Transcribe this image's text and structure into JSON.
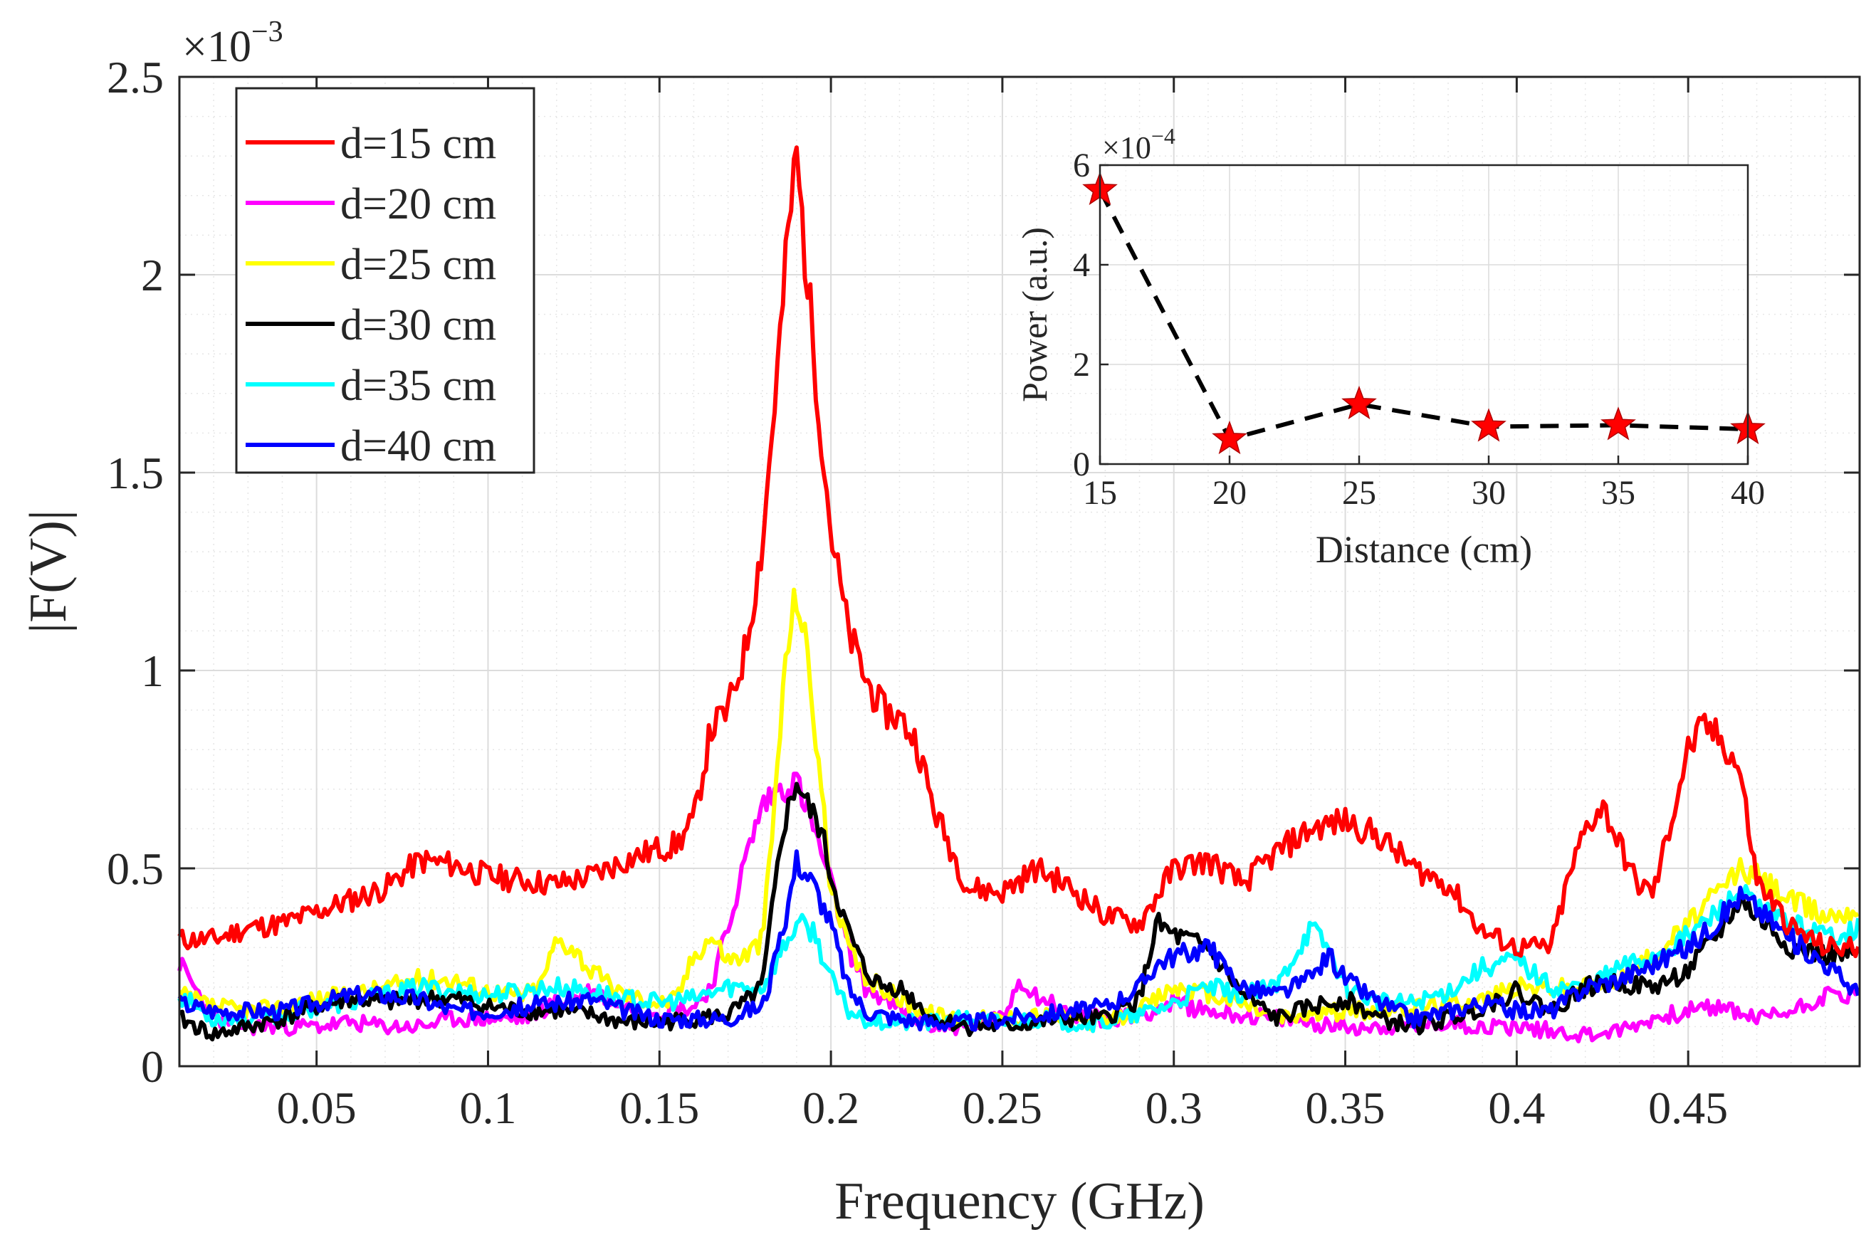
{
  "chart_data": [
    {
      "type": "line",
      "name": "main",
      "title": "",
      "xlabel": "Frequency (GHz)",
      "ylabel": "|F(V)|",
      "y_exponent_label": "×10",
      "y_exponent": "−3",
      "xlim": [
        0.01,
        0.5
      ],
      "ylim": [
        0,
        2.5
      ],
      "grid": true,
      "x_ticks": [
        0.05,
        0.1,
        0.15,
        0.2,
        0.25,
        0.3,
        0.35,
        0.4,
        0.45
      ],
      "x_tick_labels": [
        "0.05",
        "0.1",
        "0.15",
        "0.2",
        "0.25",
        "0.3",
        "0.35",
        "0.4",
        "0.45"
      ],
      "y_ticks": [
        0,
        0.5,
        1,
        1.5,
        2,
        2.5
      ],
      "y_tick_labels": [
        "0",
        "0.5",
        "1",
        "1.5",
        "2",
        "2.5"
      ],
      "legend_position": "top-left",
      "series": [
        {
          "name": "d=15 cm",
          "color": "#ff0000",
          "x": [
            0.01,
            0.02,
            0.03,
            0.04,
            0.05,
            0.06,
            0.07,
            0.08,
            0.09,
            0.1,
            0.11,
            0.12,
            0.13,
            0.14,
            0.15,
            0.155,
            0.16,
            0.165,
            0.17,
            0.175,
            0.18,
            0.185,
            0.188,
            0.19,
            0.193,
            0.197,
            0.2,
            0.205,
            0.21,
            0.215,
            0.22,
            0.225,
            0.23,
            0.24,
            0.25,
            0.26,
            0.27,
            0.28,
            0.29,
            0.3,
            0.31,
            0.32,
            0.33,
            0.34,
            0.35,
            0.36,
            0.37,
            0.38,
            0.39,
            0.4,
            0.41,
            0.415,
            0.42,
            0.425,
            0.43,
            0.435,
            0.44,
            0.445,
            0.45,
            0.455,
            0.46,
            0.465,
            0.47,
            0.48,
            0.49,
            0.5
          ],
          "y": [
            0.32,
            0.32,
            0.35,
            0.36,
            0.39,
            0.42,
            0.45,
            0.52,
            0.51,
            0.48,
            0.47,
            0.46,
            0.48,
            0.52,
            0.55,
            0.56,
            0.62,
            0.85,
            0.9,
            1.05,
            1.32,
            1.82,
            2.15,
            2.3,
            2.0,
            1.62,
            1.35,
            1.1,
            0.98,
            0.9,
            0.88,
            0.82,
            0.65,
            0.45,
            0.44,
            0.5,
            0.45,
            0.38,
            0.36,
            0.5,
            0.52,
            0.46,
            0.54,
            0.6,
            0.62,
            0.58,
            0.5,
            0.46,
            0.34,
            0.3,
            0.3,
            0.47,
            0.6,
            0.66,
            0.56,
            0.46,
            0.44,
            0.62,
            0.8,
            0.86,
            0.82,
            0.75,
            0.47,
            0.35,
            0.3,
            0.3
          ]
        },
        {
          "name": "d=20 cm",
          "color": "#ff00ff",
          "x": [
            0.01,
            0.02,
            0.03,
            0.04,
            0.05,
            0.06,
            0.07,
            0.08,
            0.09,
            0.1,
            0.11,
            0.12,
            0.13,
            0.14,
            0.15,
            0.16,
            0.165,
            0.17,
            0.175,
            0.18,
            0.185,
            0.19,
            0.195,
            0.2,
            0.205,
            0.21,
            0.22,
            0.23,
            0.24,
            0.25,
            0.255,
            0.26,
            0.27,
            0.28,
            0.29,
            0.3,
            0.31,
            0.32,
            0.33,
            0.34,
            0.35,
            0.36,
            0.37,
            0.38,
            0.39,
            0.4,
            0.41,
            0.42,
            0.43,
            0.44,
            0.45,
            0.46,
            0.47,
            0.48,
            0.49,
            0.5
          ],
          "y": [
            0.26,
            0.12,
            0.1,
            0.1,
            0.1,
            0.11,
            0.1,
            0.1,
            0.12,
            0.12,
            0.12,
            0.16,
            0.19,
            0.15,
            0.14,
            0.15,
            0.2,
            0.35,
            0.52,
            0.66,
            0.7,
            0.72,
            0.6,
            0.46,
            0.3,
            0.2,
            0.14,
            0.1,
            0.1,
            0.12,
            0.22,
            0.18,
            0.13,
            0.12,
            0.13,
            0.16,
            0.14,
            0.13,
            0.12,
            0.11,
            0.1,
            0.1,
            0.1,
            0.11,
            0.1,
            0.1,
            0.09,
            0.08,
            0.09,
            0.12,
            0.14,
            0.15,
            0.12,
            0.14,
            0.18,
            0.18
          ]
        },
        {
          "name": "d=25 cm",
          "color": "#ffff00",
          "x": [
            0.01,
            0.02,
            0.03,
            0.04,
            0.05,
            0.06,
            0.07,
            0.08,
            0.09,
            0.1,
            0.11,
            0.115,
            0.12,
            0.125,
            0.13,
            0.14,
            0.15,
            0.155,
            0.16,
            0.165,
            0.17,
            0.175,
            0.18,
            0.183,
            0.186,
            0.188,
            0.19,
            0.193,
            0.197,
            0.2,
            0.205,
            0.21,
            0.215,
            0.22,
            0.23,
            0.24,
            0.25,
            0.26,
            0.27,
            0.28,
            0.29,
            0.3,
            0.31,
            0.32,
            0.33,
            0.34,
            0.35,
            0.36,
            0.37,
            0.38,
            0.39,
            0.4,
            0.41,
            0.42,
            0.43,
            0.44,
            0.45,
            0.46,
            0.465,
            0.47,
            0.48,
            0.49,
            0.5
          ],
          "y": [
            0.18,
            0.15,
            0.14,
            0.15,
            0.17,
            0.18,
            0.2,
            0.22,
            0.22,
            0.19,
            0.18,
            0.2,
            0.32,
            0.3,
            0.24,
            0.18,
            0.16,
            0.17,
            0.28,
            0.33,
            0.27,
            0.28,
            0.32,
            0.6,
            0.95,
            1.1,
            1.2,
            1.05,
            0.72,
            0.45,
            0.3,
            0.22,
            0.2,
            0.17,
            0.13,
            0.12,
            0.12,
            0.13,
            0.12,
            0.11,
            0.14,
            0.2,
            0.18,
            0.16,
            0.12,
            0.13,
            0.14,
            0.14,
            0.15,
            0.16,
            0.17,
            0.2,
            0.2,
            0.2,
            0.22,
            0.28,
            0.36,
            0.45,
            0.5,
            0.48,
            0.42,
            0.38,
            0.4
          ]
        },
        {
          "name": "d=30 cm",
          "color": "#000000",
          "x": [
            0.01,
            0.02,
            0.03,
            0.04,
            0.05,
            0.06,
            0.07,
            0.08,
            0.09,
            0.1,
            0.11,
            0.12,
            0.13,
            0.14,
            0.15,
            0.16,
            0.17,
            0.175,
            0.18,
            0.183,
            0.186,
            0.19,
            0.193,
            0.197,
            0.2,
            0.205,
            0.21,
            0.215,
            0.22,
            0.225,
            0.23,
            0.24,
            0.25,
            0.26,
            0.27,
            0.28,
            0.29,
            0.295,
            0.3,
            0.31,
            0.32,
            0.33,
            0.34,
            0.35,
            0.36,
            0.37,
            0.38,
            0.39,
            0.4,
            0.41,
            0.42,
            0.43,
            0.44,
            0.45,
            0.46,
            0.465,
            0.47,
            0.48,
            0.49,
            0.5
          ],
          "y": [
            0.12,
            0.08,
            0.1,
            0.12,
            0.15,
            0.17,
            0.16,
            0.17,
            0.17,
            0.15,
            0.14,
            0.14,
            0.13,
            0.11,
            0.11,
            0.12,
            0.13,
            0.16,
            0.2,
            0.4,
            0.6,
            0.72,
            0.66,
            0.6,
            0.48,
            0.34,
            0.24,
            0.2,
            0.2,
            0.16,
            0.12,
            0.1,
            0.1,
            0.11,
            0.12,
            0.12,
            0.17,
            0.36,
            0.33,
            0.3,
            0.18,
            0.12,
            0.15,
            0.17,
            0.12,
            0.1,
            0.12,
            0.15,
            0.19,
            0.14,
            0.2,
            0.21,
            0.2,
            0.24,
            0.35,
            0.42,
            0.38,
            0.3,
            0.28,
            0.28
          ]
        },
        {
          "name": "d=35 cm",
          "color": "#00ffff",
          "x": [
            0.01,
            0.02,
            0.03,
            0.04,
            0.05,
            0.06,
            0.07,
            0.08,
            0.09,
            0.1,
            0.11,
            0.12,
            0.13,
            0.14,
            0.15,
            0.16,
            0.17,
            0.18,
            0.185,
            0.19,
            0.195,
            0.2,
            0.205,
            0.21,
            0.22,
            0.23,
            0.24,
            0.25,
            0.26,
            0.27,
            0.28,
            0.29,
            0.3,
            0.31,
            0.32,
            0.33,
            0.335,
            0.34,
            0.345,
            0.35,
            0.36,
            0.37,
            0.38,
            0.39,
            0.4,
            0.41,
            0.42,
            0.43,
            0.44,
            0.45,
            0.46,
            0.465,
            0.47,
            0.48,
            0.49,
            0.5
          ],
          "y": [
            0.18,
            0.12,
            0.12,
            0.13,
            0.15,
            0.16,
            0.18,
            0.2,
            0.19,
            0.18,
            0.19,
            0.2,
            0.19,
            0.17,
            0.16,
            0.17,
            0.2,
            0.2,
            0.28,
            0.36,
            0.34,
            0.22,
            0.14,
            0.12,
            0.11,
            0.11,
            0.12,
            0.11,
            0.12,
            0.11,
            0.11,
            0.13,
            0.16,
            0.2,
            0.18,
            0.2,
            0.28,
            0.35,
            0.3,
            0.2,
            0.16,
            0.16,
            0.19,
            0.25,
            0.27,
            0.2,
            0.2,
            0.25,
            0.28,
            0.33,
            0.4,
            0.44,
            0.4,
            0.36,
            0.33,
            0.35
          ]
        },
        {
          "name": "d=40 cm",
          "color": "#0000ff",
          "x": [
            0.01,
            0.02,
            0.03,
            0.04,
            0.05,
            0.06,
            0.07,
            0.08,
            0.09,
            0.1,
            0.11,
            0.12,
            0.13,
            0.14,
            0.15,
            0.16,
            0.17,
            0.175,
            0.18,
            0.185,
            0.19,
            0.195,
            0.2,
            0.205,
            0.21,
            0.22,
            0.23,
            0.24,
            0.25,
            0.26,
            0.27,
            0.28,
            0.29,
            0.295,
            0.3,
            0.31,
            0.32,
            0.33,
            0.34,
            0.345,
            0.35,
            0.36,
            0.37,
            0.38,
            0.39,
            0.4,
            0.41,
            0.42,
            0.43,
            0.44,
            0.45,
            0.46,
            0.465,
            0.47,
            0.48,
            0.49,
            0.5
          ],
          "y": [
            0.16,
            0.14,
            0.14,
            0.14,
            0.16,
            0.18,
            0.18,
            0.17,
            0.14,
            0.14,
            0.15,
            0.16,
            0.17,
            0.14,
            0.12,
            0.12,
            0.12,
            0.14,
            0.15,
            0.3,
            0.52,
            0.46,
            0.36,
            0.2,
            0.14,
            0.12,
            0.11,
            0.11,
            0.12,
            0.13,
            0.14,
            0.15,
            0.2,
            0.26,
            0.28,
            0.3,
            0.2,
            0.18,
            0.22,
            0.28,
            0.22,
            0.16,
            0.12,
            0.14,
            0.16,
            0.14,
            0.14,
            0.2,
            0.22,
            0.26,
            0.3,
            0.38,
            0.43,
            0.4,
            0.32,
            0.26,
            0.18
          ]
        }
      ]
    },
    {
      "type": "line",
      "name": "inset",
      "xlabel": "Distance (cm)",
      "ylabel": "Power (a.u.)",
      "y_exponent_label": "×10",
      "y_exponent": "−4",
      "xlim": [
        15,
        40
      ],
      "ylim": [
        0,
        6
      ],
      "grid": true,
      "x_ticks": [
        15,
        20,
        25,
        30,
        35,
        40
      ],
      "x_tick_labels": [
        "15",
        "20",
        "25",
        "30",
        "35",
        "40"
      ],
      "y_ticks": [
        0,
        2,
        4,
        6
      ],
      "y_tick_labels": [
        "0",
        "2",
        "4",
        "6"
      ],
      "line_style": "dashed",
      "marker": "star",
      "line_color": "#000000",
      "marker_color": "#ff0000",
      "x": [
        15,
        20,
        25,
        30,
        35,
        40
      ],
      "y": [
        5.5,
        0.5,
        1.2,
        0.75,
        0.78,
        0.7
      ]
    }
  ]
}
